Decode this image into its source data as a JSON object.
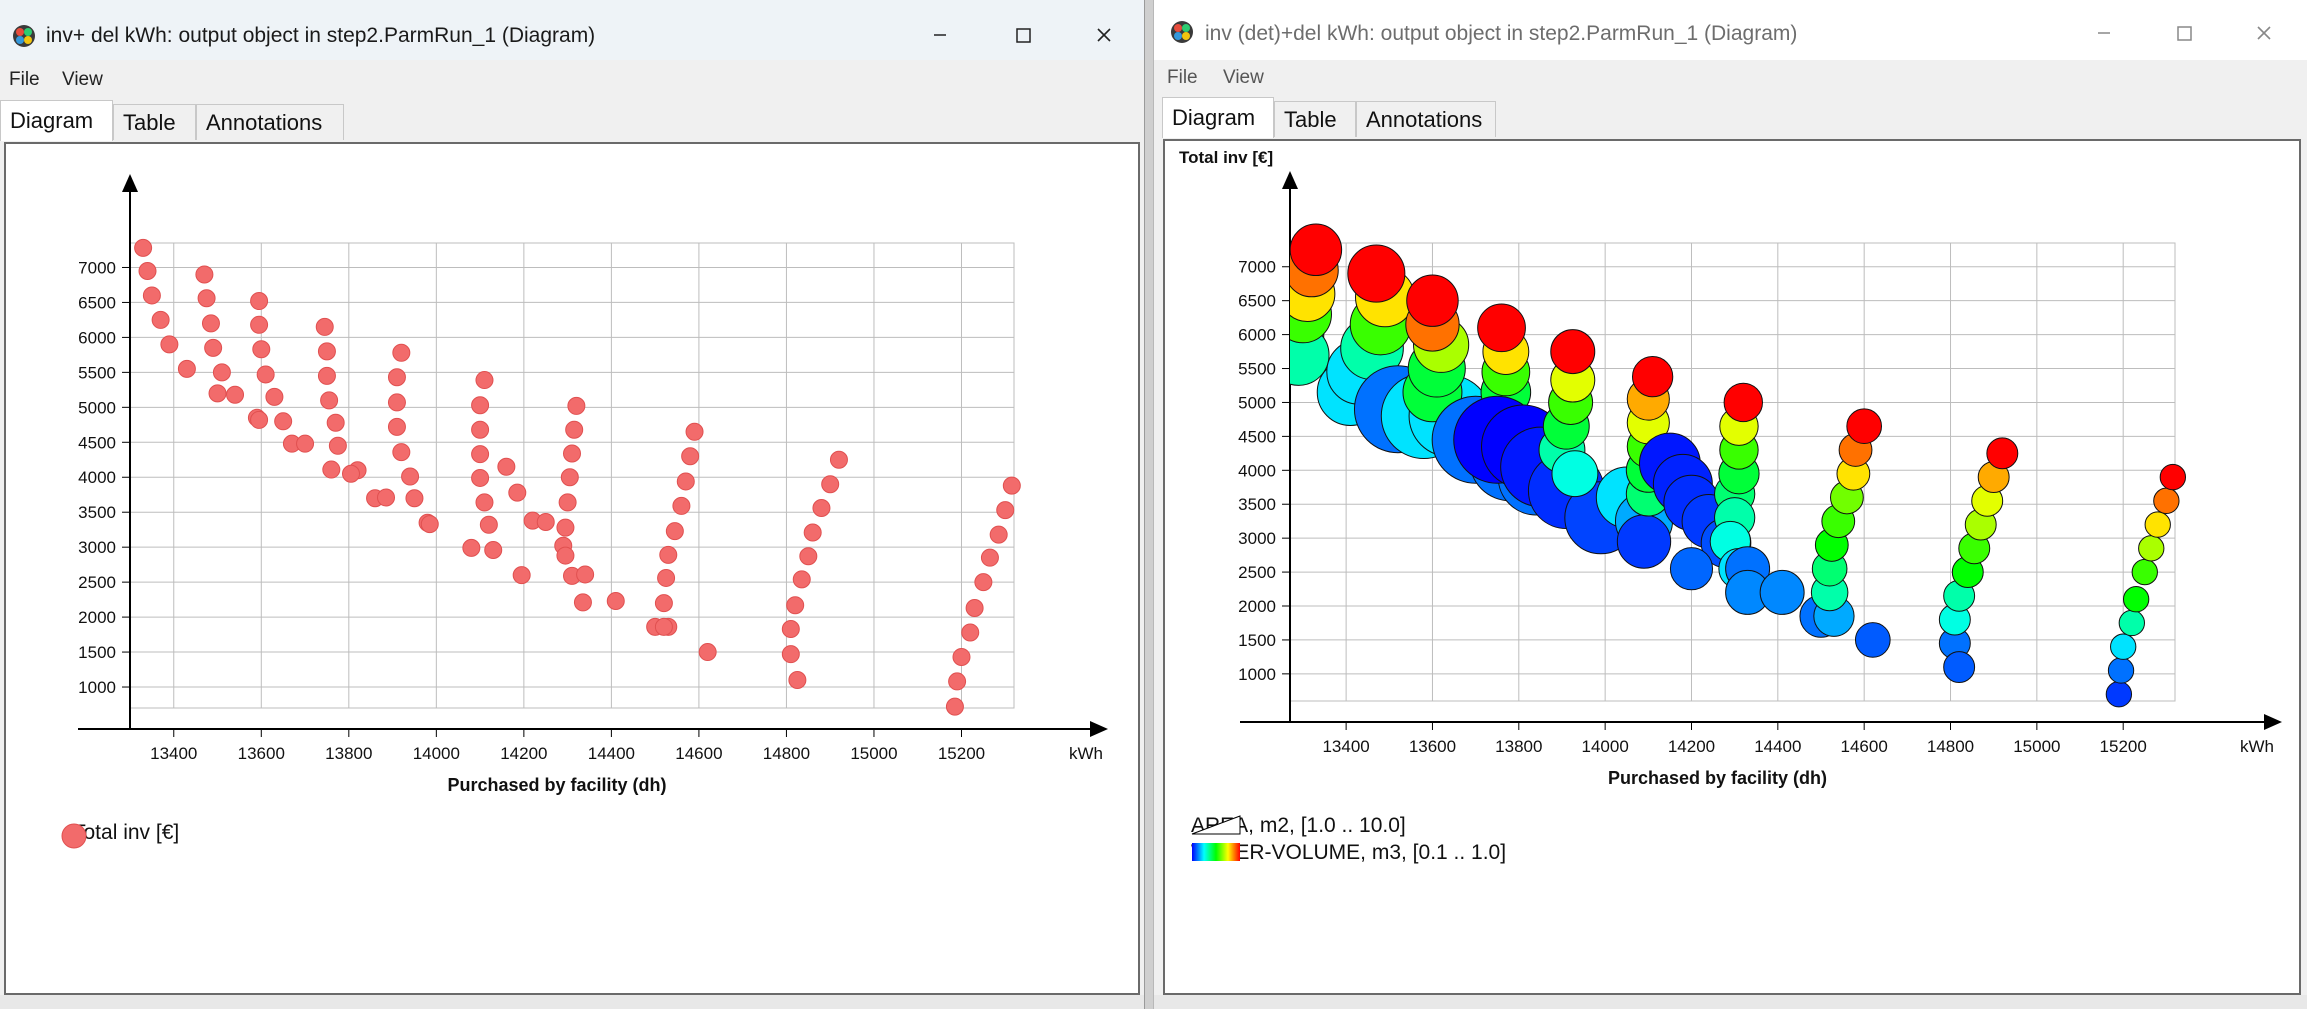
{
  "left_window": {
    "title": "inv+ del kWh: output object in step2.ParmRun_1 (Diagram)",
    "menu": [
      "File",
      "View"
    ],
    "tabs": [
      "Diagram",
      "Table",
      "Annotations"
    ],
    "active_tab": "Diagram",
    "legend": {
      "label": "Total inv [€]",
      "marker_color": "#f26b6b"
    }
  },
  "right_window": {
    "title": "inv (det)+del kWh: output object in step2.ParmRun_1 (Diagram)",
    "menu": [
      "File",
      "View"
    ],
    "tabs": [
      "Diagram",
      "Table",
      "Annotations"
    ],
    "active_tab": "Diagram",
    "legend": {
      "size_label": "AREA, m2, [1.0 .. 10.0]",
      "color_label": "WATER-VOLUME, m3, [0.1 .. 1.0]"
    }
  },
  "chart_data": [
    {
      "type": "scatter",
      "title": "",
      "xlabel": "Purchased by facility (dh)",
      "x_unit": "kWh",
      "ylabel": "",
      "xlim": [
        13300,
        15320
      ],
      "ylim": [
        700,
        7350
      ],
      "x_ticks": [
        13400,
        13600,
        13800,
        14000,
        14200,
        14400,
        14600,
        14800,
        15000,
        15200
      ],
      "y_ticks": [
        1000,
        1500,
        2000,
        2500,
        3000,
        3500,
        4000,
        4500,
        5000,
        5500,
        6000,
        6500,
        7000
      ],
      "grid": true,
      "legend_position": "bottom-left",
      "series": [
        {
          "name": "Total inv [€]",
          "color": "#f26b6b",
          "points": [
            [
              13330,
              7280
            ],
            [
              13340,
              6950
            ],
            [
              13350,
              6600
            ],
            [
              13370,
              6250
            ],
            [
              13390,
              5900
            ],
            [
              13430,
              5550
            ],
            [
              13470,
              6900
            ],
            [
              13475,
              6560
            ],
            [
              13485,
              6200
            ],
            [
              13490,
              5850
            ],
            [
              13510,
              5500
            ],
            [
              13500,
              5200
            ],
            [
              13540,
              5180
            ],
            [
              13590,
              4850
            ],
            [
              13595,
              4820
            ],
            [
              13595,
              6520
            ],
            [
              13595,
              6180
            ],
            [
              13600,
              5830
            ],
            [
              13610,
              5470
            ],
            [
              13630,
              5150
            ],
            [
              13650,
              4800
            ],
            [
              13670,
              4480
            ],
            [
              13700,
              4480
            ],
            [
              13745,
              6150
            ],
            [
              13750,
              5800
            ],
            [
              13750,
              5450
            ],
            [
              13755,
              5100
            ],
            [
              13770,
              4780
            ],
            [
              13775,
              4450
            ],
            [
              13760,
              4110
            ],
            [
              13820,
              4100
            ],
            [
              13805,
              4050
            ],
            [
              13860,
              3700
            ],
            [
              13885,
              3710
            ],
            [
              13920,
              5780
            ],
            [
              13910,
              5430
            ],
            [
              13910,
              5070
            ],
            [
              13910,
              4720
            ],
            [
              13920,
              4360
            ],
            [
              13940,
              4010
            ],
            [
              13950,
              3700
            ],
            [
              13980,
              3350
            ],
            [
              13985,
              3330
            ],
            [
              14110,
              5390
            ],
            [
              14100,
              5030
            ],
            [
              14100,
              4680
            ],
            [
              14100,
              4330
            ],
            [
              14100,
              3990
            ],
            [
              14110,
              3640
            ],
            [
              14120,
              3320
            ],
            [
              14080,
              2990
            ],
            [
              14130,
              2960
            ],
            [
              14160,
              4150
            ],
            [
              14185,
              3780
            ],
            [
              14220,
              3380
            ],
            [
              14250,
              3360
            ],
            [
              14195,
              2600
            ],
            [
              14320,
              5020
            ],
            [
              14315,
              4680
            ],
            [
              14310,
              4340
            ],
            [
              14305,
              4000
            ],
            [
              14300,
              3640
            ],
            [
              14295,
              3280
            ],
            [
              14290,
              3020
            ],
            [
              14295,
              2880
            ],
            [
              14310,
              2590
            ],
            [
              14340,
              2610
            ],
            [
              14335,
              2210
            ],
            [
              14410,
              2230
            ],
            [
              14500,
              1860
            ],
            [
              14530,
              1860
            ],
            [
              14590,
              4650
            ],
            [
              14580,
              4300
            ],
            [
              14570,
              3940
            ],
            [
              14560,
              3590
            ],
            [
              14545,
              3230
            ],
            [
              14530,
              2890
            ],
            [
              14525,
              2560
            ],
            [
              14520,
              2200
            ],
            [
              14520,
              1860
            ],
            [
              14620,
              1500
            ],
            [
              14920,
              4250
            ],
            [
              14900,
              3900
            ],
            [
              14880,
              3560
            ],
            [
              14860,
              3210
            ],
            [
              14850,
              2870
            ],
            [
              14835,
              2540
            ],
            [
              14820,
              2170
            ],
            [
              14810,
              1830
            ],
            [
              14810,
              1470
            ],
            [
              14825,
              1100
            ],
            [
              15315,
              3880
            ],
            [
              15300,
              3530
            ],
            [
              15285,
              3180
            ],
            [
              15265,
              2850
            ],
            [
              15250,
              2500
            ],
            [
              15230,
              2130
            ],
            [
              15220,
              1780
            ],
            [
              15200,
              1430
            ],
            [
              15190,
              1080
            ],
            [
              15185,
              720
            ]
          ]
        }
      ]
    },
    {
      "type": "scatter",
      "title": "",
      "xlabel": "Purchased by facility (dh)",
      "x_unit": "kWh",
      "ylabel": "Total inv [€]",
      "xlim": [
        13270,
        15320
      ],
      "ylim": [
        600,
        7350
      ],
      "x_ticks": [
        13400,
        13600,
        13800,
        14000,
        14200,
        14400,
        14600,
        14800,
        15000,
        15200
      ],
      "y_ticks": [
        1000,
        1500,
        2000,
        2500,
        3000,
        3500,
        4000,
        4500,
        5000,
        5500,
        6000,
        6500,
        7000
      ],
      "grid": true,
      "size_encoding": "AREA, m2, [1.0 .. 10.0]",
      "color_encoding": "WATER-VOLUME, m3, [0.1 .. 1.0]",
      "series": [
        {
          "name": "",
          "columns": [
            "x",
            "y",
            "area_m2",
            "water_volume_m3"
          ],
          "points": [
            [
              13280,
              6000,
              5.6,
              0.5
            ],
            [
              13290,
              5700,
              5.8,
              0.4
            ],
            [
              13300,
              6300,
              5.4,
              0.6
            ],
            [
              13310,
              6600,
              5.2,
              0.8
            ],
            [
              13320,
              6950,
              5.0,
              0.9
            ],
            [
              13330,
              7250,
              4.8,
              1.0
            ],
            [
              13410,
              5150,
              6.4,
              0.3
            ],
            [
              13430,
              5450,
              6.2,
              0.3
            ],
            [
              13460,
              5800,
              6.0,
              0.4
            ],
            [
              13480,
              6150,
              5.8,
              0.6
            ],
            [
              13490,
              6550,
              5.6,
              0.8
            ],
            [
              13470,
              6900,
              5.4,
              1.0
            ],
            [
              13520,
              4900,
              8.6,
              0.2
            ],
            [
              13580,
              4800,
              8.4,
              0.3
            ],
            [
              13640,
              4800,
              8.0,
              0.3
            ],
            [
              13600,
              5150,
              5.6,
              0.5
            ],
            [
              13610,
              5500,
              5.4,
              0.5
            ],
            [
              13620,
              5850,
              5.2,
              0.7
            ],
            [
              13600,
              6150,
              5.0,
              0.9
            ],
            [
              13600,
              6500,
              4.8,
              1.0
            ],
            [
              13700,
              4450,
              8.6,
              0.2
            ],
            [
              13780,
              4150,
              8.0,
              0.2
            ],
            [
              13840,
              3900,
              7.4,
              0.2
            ],
            [
              13760,
              4800,
              4.8,
              0.4
            ],
            [
              13770,
              5150,
              4.6,
              0.5
            ],
            [
              13770,
              5450,
              4.4,
              0.6
            ],
            [
              13770,
              5750,
              4.2,
              0.8
            ],
            [
              13760,
              6100,
              4.4,
              1.0
            ],
            [
              13750,
              4450,
              8.6,
              0.08
            ],
            [
              13810,
              4350,
              8.2,
              0.1
            ],
            [
              13850,
              4050,
              7.8,
              0.12
            ],
            [
              13910,
              3700,
              7.4,
              0.14
            ],
            [
              13990,
              3300,
              7.0,
              0.16
            ],
            [
              13900,
              4300,
              4.2,
              0.4
            ],
            [
              13910,
              4650,
              4.2,
              0.5
            ],
            [
              13920,
              5000,
              4.0,
              0.6
            ],
            [
              13925,
              5330,
              4.0,
              0.75
            ],
            [
              13925,
              5750,
              4.0,
              1.0
            ],
            [
              13930,
              3950,
              4.2,
              0.35
            ],
            [
              14050,
              3600,
              5.8,
              0.3
            ],
            [
              14090,
              3250,
              5.4,
              0.25
            ],
            [
              14090,
              2950,
              5.0,
              0.15
            ],
            [
              14100,
              3650,
              4.0,
              0.45
            ],
            [
              14100,
              4000,
              4.0,
              0.5
            ],
            [
              14100,
              4350,
              3.8,
              0.6
            ],
            [
              14100,
              4700,
              3.8,
              0.75
            ],
            [
              14100,
              5050,
              3.8,
              0.85
            ],
            [
              14110,
              5380,
              3.6,
              1.0
            ],
            [
              14150,
              4100,
              5.8,
              0.12
            ],
            [
              14180,
              3800,
              5.6,
              0.13
            ],
            [
              14200,
              3520,
              5.2,
              0.14
            ],
            [
              14240,
              3250,
              5.0,
              0.15
            ],
            [
              14280,
              2930,
              4.6,
              0.17
            ],
            [
              14200,
              2550,
              3.8,
              0.19
            ],
            [
              14300,
              3650,
              3.6,
              0.45
            ],
            [
              14310,
              3950,
              3.6,
              0.5
            ],
            [
              14310,
              4300,
              3.4,
              0.6
            ],
            [
              14310,
              4650,
              3.4,
              0.75
            ],
            [
              14320,
              5000,
              3.4,
              1.0
            ],
            [
              14300,
              3300,
              3.6,
              0.4
            ],
            [
              14290,
              2950,
              3.6,
              0.35
            ],
            [
              14310,
              2550,
              3.6,
              0.3
            ],
            [
              14330,
              2550,
              4.0,
              0.2
            ],
            [
              14330,
              2200,
              4.0,
              0.22
            ],
            [
              14410,
              2200,
              4.0,
              0.22
            ],
            [
              14500,
              1850,
              3.8,
              0.2
            ],
            [
              14530,
              1850,
              3.6,
              0.25
            ],
            [
              14520,
              2200,
              3.2,
              0.4
            ],
            [
              14520,
              2550,
              3.0,
              0.45
            ],
            [
              14525,
              2900,
              2.8,
              0.55
            ],
            [
              14540,
              3250,
              2.8,
              0.6
            ],
            [
              14560,
              3600,
              2.8,
              0.65
            ],
            [
              14575,
              3950,
              2.8,
              0.8
            ],
            [
              14580,
              4300,
              2.8,
              0.9
            ],
            [
              14600,
              4650,
              3.0,
              1.0
            ],
            [
              14620,
              1500,
              3.0,
              0.18
            ],
            [
              14810,
              1450,
              2.6,
              0.2
            ],
            [
              14820,
              1100,
              2.6,
              0.18
            ],
            [
              14810,
              1800,
              2.6,
              0.35
            ],
            [
              14820,
              2150,
              2.6,
              0.4
            ],
            [
              14840,
              2500,
              2.6,
              0.55
            ],
            [
              14855,
              2850,
              2.6,
              0.6
            ],
            [
              14870,
              3200,
              2.6,
              0.7
            ],
            [
              14885,
              3550,
              2.6,
              0.75
            ],
            [
              14900,
              3900,
              2.6,
              0.85
            ],
            [
              14920,
              4250,
              2.6,
              1.0
            ],
            [
              15190,
              700,
              2.0,
              0.15
            ],
            [
              15195,
              1050,
              2.0,
              0.2
            ],
            [
              15200,
              1400,
              2.0,
              0.3
            ],
            [
              15220,
              1750,
              2.0,
              0.4
            ],
            [
              15230,
              2100,
              2.0,
              0.55
            ],
            [
              15250,
              2500,
              2.0,
              0.6
            ],
            [
              15265,
              2850,
              2.0,
              0.7
            ],
            [
              15280,
              3200,
              2.0,
              0.8
            ],
            [
              15300,
              3550,
              2.0,
              0.9
            ],
            [
              15315,
              3900,
              2.0,
              1.0
            ]
          ]
        }
      ]
    }
  ]
}
